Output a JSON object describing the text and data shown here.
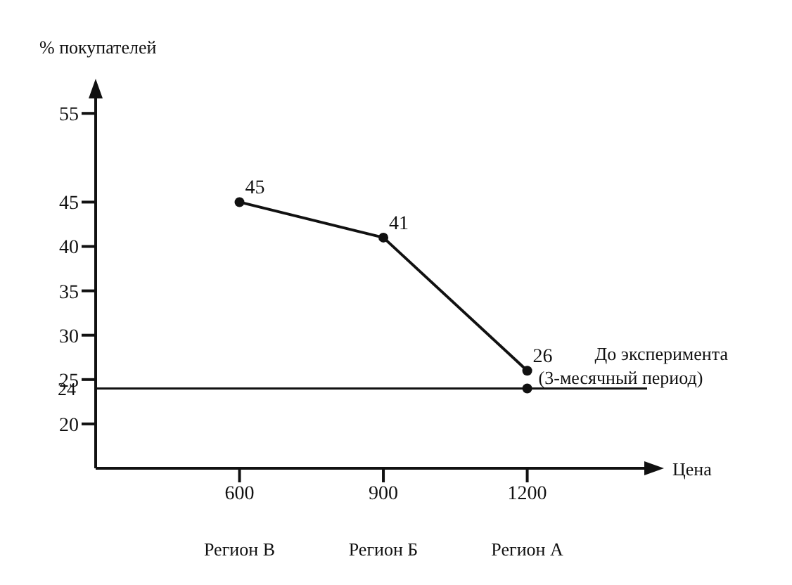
{
  "chart_data": {
    "type": "line",
    "xlabel": "Цена",
    "ylabel": "% покупателей",
    "x": [
      600,
      900,
      1200
    ],
    "xlim": [
      300,
      1450
    ],
    "xticks": [
      600,
      900,
      1200
    ],
    "ylim": [
      15,
      57
    ],
    "yticks": [
      20,
      25,
      30,
      35,
      40,
      45,
      55
    ],
    "series": [
      {
        "color": "#111111",
        "values": [
          45,
          41,
          26
        ],
        "data_labels": true,
        "marker": "circle"
      },
      {
        "type": "scatter",
        "name": "До эксперимента (3-месячный период)",
        "color": "#111111",
        "x": [
          1200
        ],
        "values": [
          24
        ],
        "marker": "circle"
      }
    ],
    "ref_lines": [
      {
        "axis": "y",
        "value": 24,
        "label": "24",
        "color": "#111111"
      }
    ],
    "annotations": [
      "Регион В",
      "Регион Б",
      "Регион А"
    ]
  }
}
